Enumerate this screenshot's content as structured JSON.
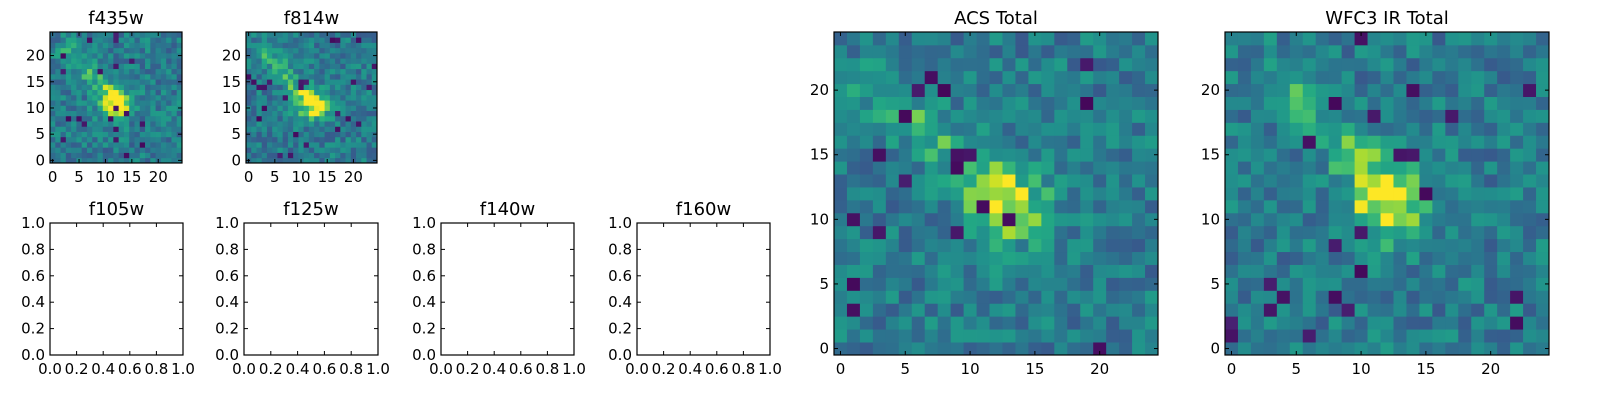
{
  "chart_data": [
    {
      "type": "heatmap",
      "title": "f435w",
      "xticks": [
        "0",
        "5",
        "10",
        "15",
        "20"
      ],
      "yticks": [
        "0",
        "5",
        "10",
        "15",
        "20"
      ],
      "xlim": [
        -0.5,
        24.5
      ],
      "ylim": [
        -0.5,
        24.5
      ],
      "grid_size": 25,
      "colormap": "viridis",
      "features": {
        "blob_center": [
          12,
          11
        ],
        "streak_from": [
          3,
          21
        ],
        "streak_to": [
          13,
          10
        ],
        "noise_seed": 11
      }
    },
    {
      "type": "heatmap",
      "title": "f814w",
      "xticks": [
        "0",
        "5",
        "10",
        "15",
        "20"
      ],
      "yticks": [
        "0",
        "5",
        "10",
        "15",
        "20"
      ],
      "xlim": [
        -0.5,
        24.5
      ],
      "ylim": [
        -0.5,
        24.5
      ],
      "grid_size": 25,
      "colormap": "viridis",
      "features": {
        "blob_center": [
          12,
          11
        ],
        "streak_from": [
          3,
          21
        ],
        "streak_to": [
          13,
          10
        ],
        "noise_seed": 23
      }
    },
    {
      "type": "heatmap",
      "title": "f105w",
      "empty": true,
      "xticks": [
        "0.0",
        "0.2",
        "0.4",
        "0.6",
        "0.8",
        "1.0"
      ],
      "yticks": [
        "0.0",
        "0.2",
        "0.4",
        "0.6",
        "0.8",
        "1.0"
      ],
      "xlim": [
        0,
        1
      ],
      "ylim": [
        0,
        1
      ]
    },
    {
      "type": "heatmap",
      "title": "f125w",
      "empty": true,
      "xticks": [
        "0.0",
        "0.2",
        "0.4",
        "0.6",
        "0.8",
        "1.0"
      ],
      "yticks": [
        "0.0",
        "0.2",
        "0.4",
        "0.6",
        "0.8",
        "1.0"
      ],
      "xlim": [
        0,
        1
      ],
      "ylim": [
        0,
        1
      ]
    },
    {
      "type": "heatmap",
      "title": "f140w",
      "empty": true,
      "xticks": [
        "0.0",
        "0.2",
        "0.4",
        "0.6",
        "0.8",
        "1.0"
      ],
      "yticks": [
        "0.0",
        "0.2",
        "0.4",
        "0.6",
        "0.8",
        "1.0"
      ],
      "xlim": [
        0,
        1
      ],
      "ylim": [
        0,
        1
      ]
    },
    {
      "type": "heatmap",
      "title": "f160w",
      "empty": true,
      "xticks": [
        "0.0",
        "0.2",
        "0.4",
        "0.6",
        "0.8",
        "1.0"
      ],
      "yticks": [
        "0.0",
        "0.2",
        "0.4",
        "0.6",
        "0.8",
        "1.0"
      ],
      "xlim": [
        0,
        1
      ],
      "ylim": [
        0,
        1
      ]
    },
    {
      "type": "heatmap",
      "title": "ACS Total",
      "xticks": [
        "0",
        "5",
        "10",
        "15",
        "20"
      ],
      "yticks": [
        "0",
        "5",
        "10",
        "15",
        "20"
      ],
      "xlim": [
        -0.5,
        24.5
      ],
      "ylim": [
        -0.5,
        24.5
      ],
      "grid_size": 25,
      "colormap": "viridis",
      "features": {
        "blob_center": [
          13,
          11
        ],
        "streak_from": [
          3,
          20
        ],
        "streak_to": [
          12,
          12
        ],
        "noise_seed": 37
      }
    },
    {
      "type": "heatmap",
      "title": "WFC3 IR Total",
      "xticks": [
        "0",
        "5",
        "10",
        "15",
        "20"
      ],
      "yticks": [
        "0",
        "5",
        "10",
        "15",
        "20"
      ],
      "xlim": [
        -0.5,
        24.5
      ],
      "ylim": [
        -0.5,
        24.5
      ],
      "grid_size": 25,
      "colormap": "viridis",
      "features": {
        "blob_center": [
          12,
          11
        ],
        "streak_from": [
          4,
          21
        ],
        "streak_to": [
          12,
          12
        ],
        "noise_seed": 51
      }
    }
  ]
}
